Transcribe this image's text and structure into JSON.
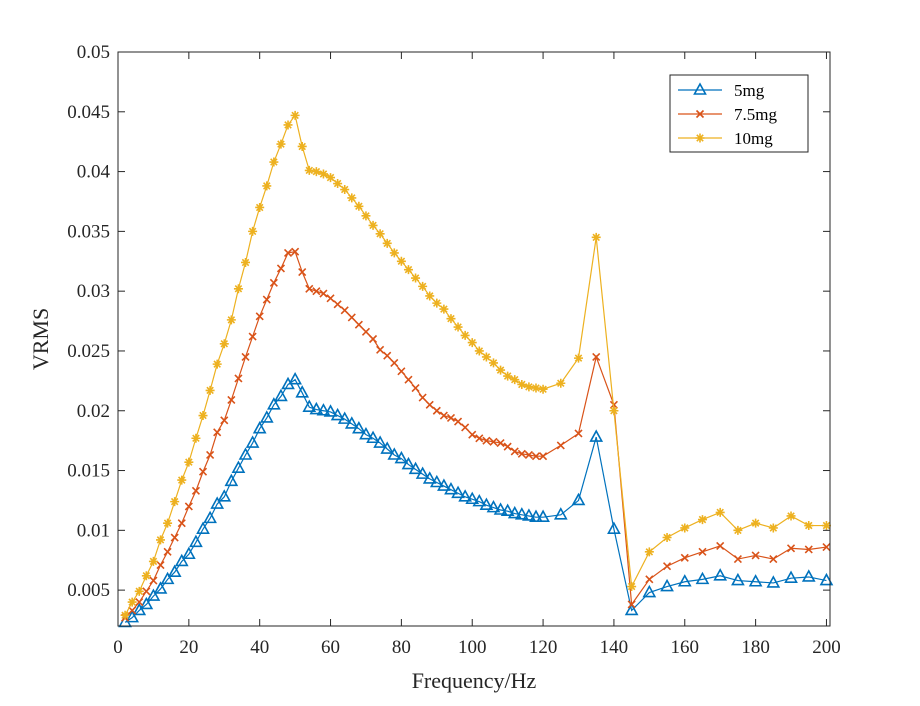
{
  "chart_data": {
    "type": "line",
    "title": "",
    "xlabel": "Frequency/Hz",
    "ylabel": "VRMS",
    "xlim": [
      0,
      201
    ],
    "ylim": [
      0.002,
      0.05
    ],
    "xticks": [
      0,
      20,
      40,
      60,
      80,
      100,
      120,
      140,
      160,
      180,
      200
    ],
    "yticks": [
      0.005,
      0.01,
      0.015,
      0.02,
      0.025,
      0.03,
      0.035,
      0.04,
      0.045,
      0.05
    ],
    "ytick_labels": [
      "0.005",
      "0.01",
      "0.015",
      "0.02",
      "0.025",
      "0.03",
      "0.035",
      "0.04",
      "0.045",
      "0.05"
    ],
    "grid": false,
    "legend_position": "top-right",
    "x": [
      2,
      4,
      6,
      8,
      10,
      12,
      14,
      16,
      18,
      20,
      22,
      24,
      26,
      28,
      30,
      32,
      34,
      36,
      38,
      40,
      42,
      44,
      46,
      48,
      50,
      52,
      54,
      56,
      58,
      60,
      62,
      64,
      66,
      68,
      70,
      72,
      74,
      76,
      78,
      80,
      82,
      84,
      86,
      88,
      90,
      92,
      94,
      96,
      98,
      100,
      102,
      104,
      106,
      108,
      110,
      112,
      114,
      116,
      118,
      120,
      125,
      130,
      135,
      140,
      145,
      150,
      155,
      160,
      165,
      170,
      175,
      180,
      185,
      190,
      195,
      200
    ],
    "series": [
      {
        "name": "5mg",
        "color": "#0072BD",
        "marker": "triangle",
        "values": [
          0.0023,
          0.0027,
          0.0033,
          0.0038,
          0.0045,
          0.0051,
          0.0059,
          0.0065,
          0.0074,
          0.008,
          0.009,
          0.0101,
          0.011,
          0.0122,
          0.0128,
          0.0141,
          0.0152,
          0.0163,
          0.0173,
          0.0185,
          0.0194,
          0.0205,
          0.0212,
          0.0222,
          0.0226,
          0.0215,
          0.0203,
          0.0201,
          0.02,
          0.0199,
          0.0196,
          0.0193,
          0.0189,
          0.0185,
          0.018,
          0.0177,
          0.0173,
          0.0168,
          0.0163,
          0.016,
          0.0155,
          0.0151,
          0.0147,
          0.0143,
          0.014,
          0.0137,
          0.0134,
          0.0131,
          0.0128,
          0.0126,
          0.0124,
          0.0121,
          0.0119,
          0.0117,
          0.0116,
          0.0114,
          0.0113,
          0.0112,
          0.0111,
          0.0111,
          0.0113,
          0.0125,
          0.0178,
          0.0101,
          0.0033,
          0.0048,
          0.0053,
          0.0057,
          0.0059,
          0.0062,
          0.0058,
          0.0057,
          0.0056,
          0.006,
          0.0061,
          0.0058
        ]
      },
      {
        "name": "7.5mg",
        "color": "#D95319",
        "marker": "x",
        "values": [
          0.0027,
          0.0033,
          0.004,
          0.0049,
          0.0058,
          0.0071,
          0.0082,
          0.0094,
          0.0106,
          0.012,
          0.0133,
          0.0149,
          0.0163,
          0.0182,
          0.0192,
          0.0209,
          0.0227,
          0.0245,
          0.0262,
          0.0279,
          0.0293,
          0.0307,
          0.0319,
          0.0332,
          0.0333,
          0.0316,
          0.0302,
          0.03,
          0.0298,
          0.0294,
          0.0289,
          0.0284,
          0.0278,
          0.0272,
          0.0266,
          0.026,
          0.0251,
          0.0246,
          0.024,
          0.0233,
          0.0226,
          0.0219,
          0.0211,
          0.0205,
          0.02,
          0.0196,
          0.0194,
          0.0191,
          0.0186,
          0.018,
          0.0177,
          0.0175,
          0.0174,
          0.0173,
          0.017,
          0.0166,
          0.0164,
          0.0163,
          0.0162,
          0.0162,
          0.0171,
          0.0181,
          0.0245,
          0.0205,
          0.0038,
          0.0059,
          0.007,
          0.0077,
          0.0082,
          0.0087,
          0.0076,
          0.0079,
          0.0076,
          0.0085,
          0.0084,
          0.0086
        ]
      },
      {
        "name": "10mg",
        "color": "#EDB120",
        "marker": "asterisk",
        "values": [
          0.0029,
          0.004,
          0.0049,
          0.0062,
          0.0074,
          0.0092,
          0.0106,
          0.0124,
          0.0142,
          0.0157,
          0.0177,
          0.0196,
          0.0217,
          0.0239,
          0.0256,
          0.0276,
          0.0302,
          0.0324,
          0.035,
          0.037,
          0.0388,
          0.0408,
          0.0423,
          0.0439,
          0.0447,
          0.0421,
          0.0401,
          0.04,
          0.0398,
          0.0395,
          0.039,
          0.0385,
          0.0378,
          0.0371,
          0.0363,
          0.0355,
          0.0348,
          0.034,
          0.0332,
          0.0325,
          0.0318,
          0.0311,
          0.0304,
          0.0296,
          0.029,
          0.0285,
          0.0277,
          0.027,
          0.0263,
          0.0257,
          0.025,
          0.0245,
          0.024,
          0.0234,
          0.0229,
          0.0226,
          0.0222,
          0.022,
          0.0219,
          0.0218,
          0.0223,
          0.0244,
          0.0345,
          0.02,
          0.0053,
          0.0082,
          0.0094,
          0.0102,
          0.0109,
          0.0115,
          0.01,
          0.0106,
          0.0102,
          0.0112,
          0.0104,
          0.0104
        ]
      }
    ]
  }
}
